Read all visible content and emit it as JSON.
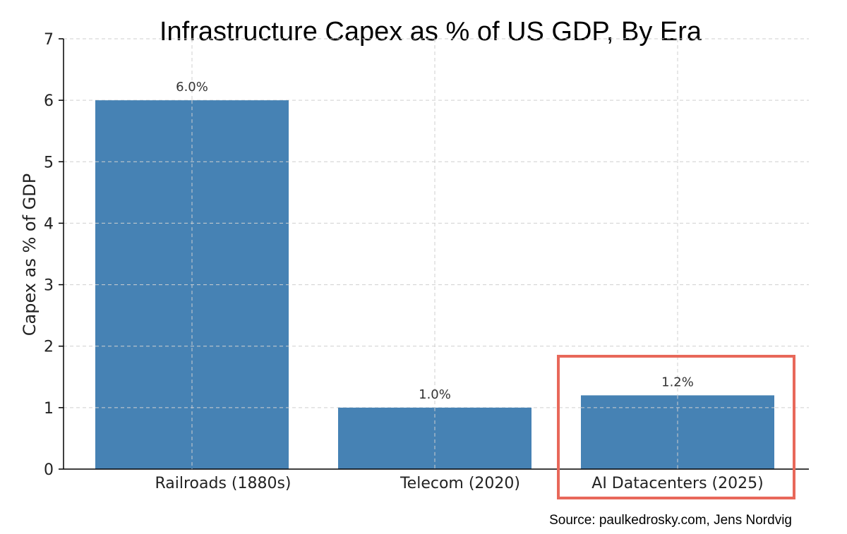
{
  "chart_data": {
    "type": "bar",
    "title": "Infrastructure Capex as % of US GDP, By Era",
    "ylabel": "Capex as % of GDP",
    "xlabel": "",
    "ylim": [
      0,
      7
    ],
    "yticks": [
      0,
      1,
      2,
      3,
      4,
      5,
      6,
      7
    ],
    "categories": [
      "Railroads (1880s)",
      "Telecom (2020)",
      "AI Datacenters (2025)"
    ],
    "values": [
      6.0,
      1.0,
      1.2
    ],
    "data_labels": [
      "6.0%",
      "1.0%",
      "1.2%"
    ],
    "grid": true,
    "highlighted_category": "AI Datacenters (2025)",
    "source": "Source: paulkedrosky.com, Jens Nordvig",
    "colors": {
      "bar": "#4682b4",
      "highlight_box": "#e8685a",
      "grid": "#cfcfcf"
    }
  }
}
